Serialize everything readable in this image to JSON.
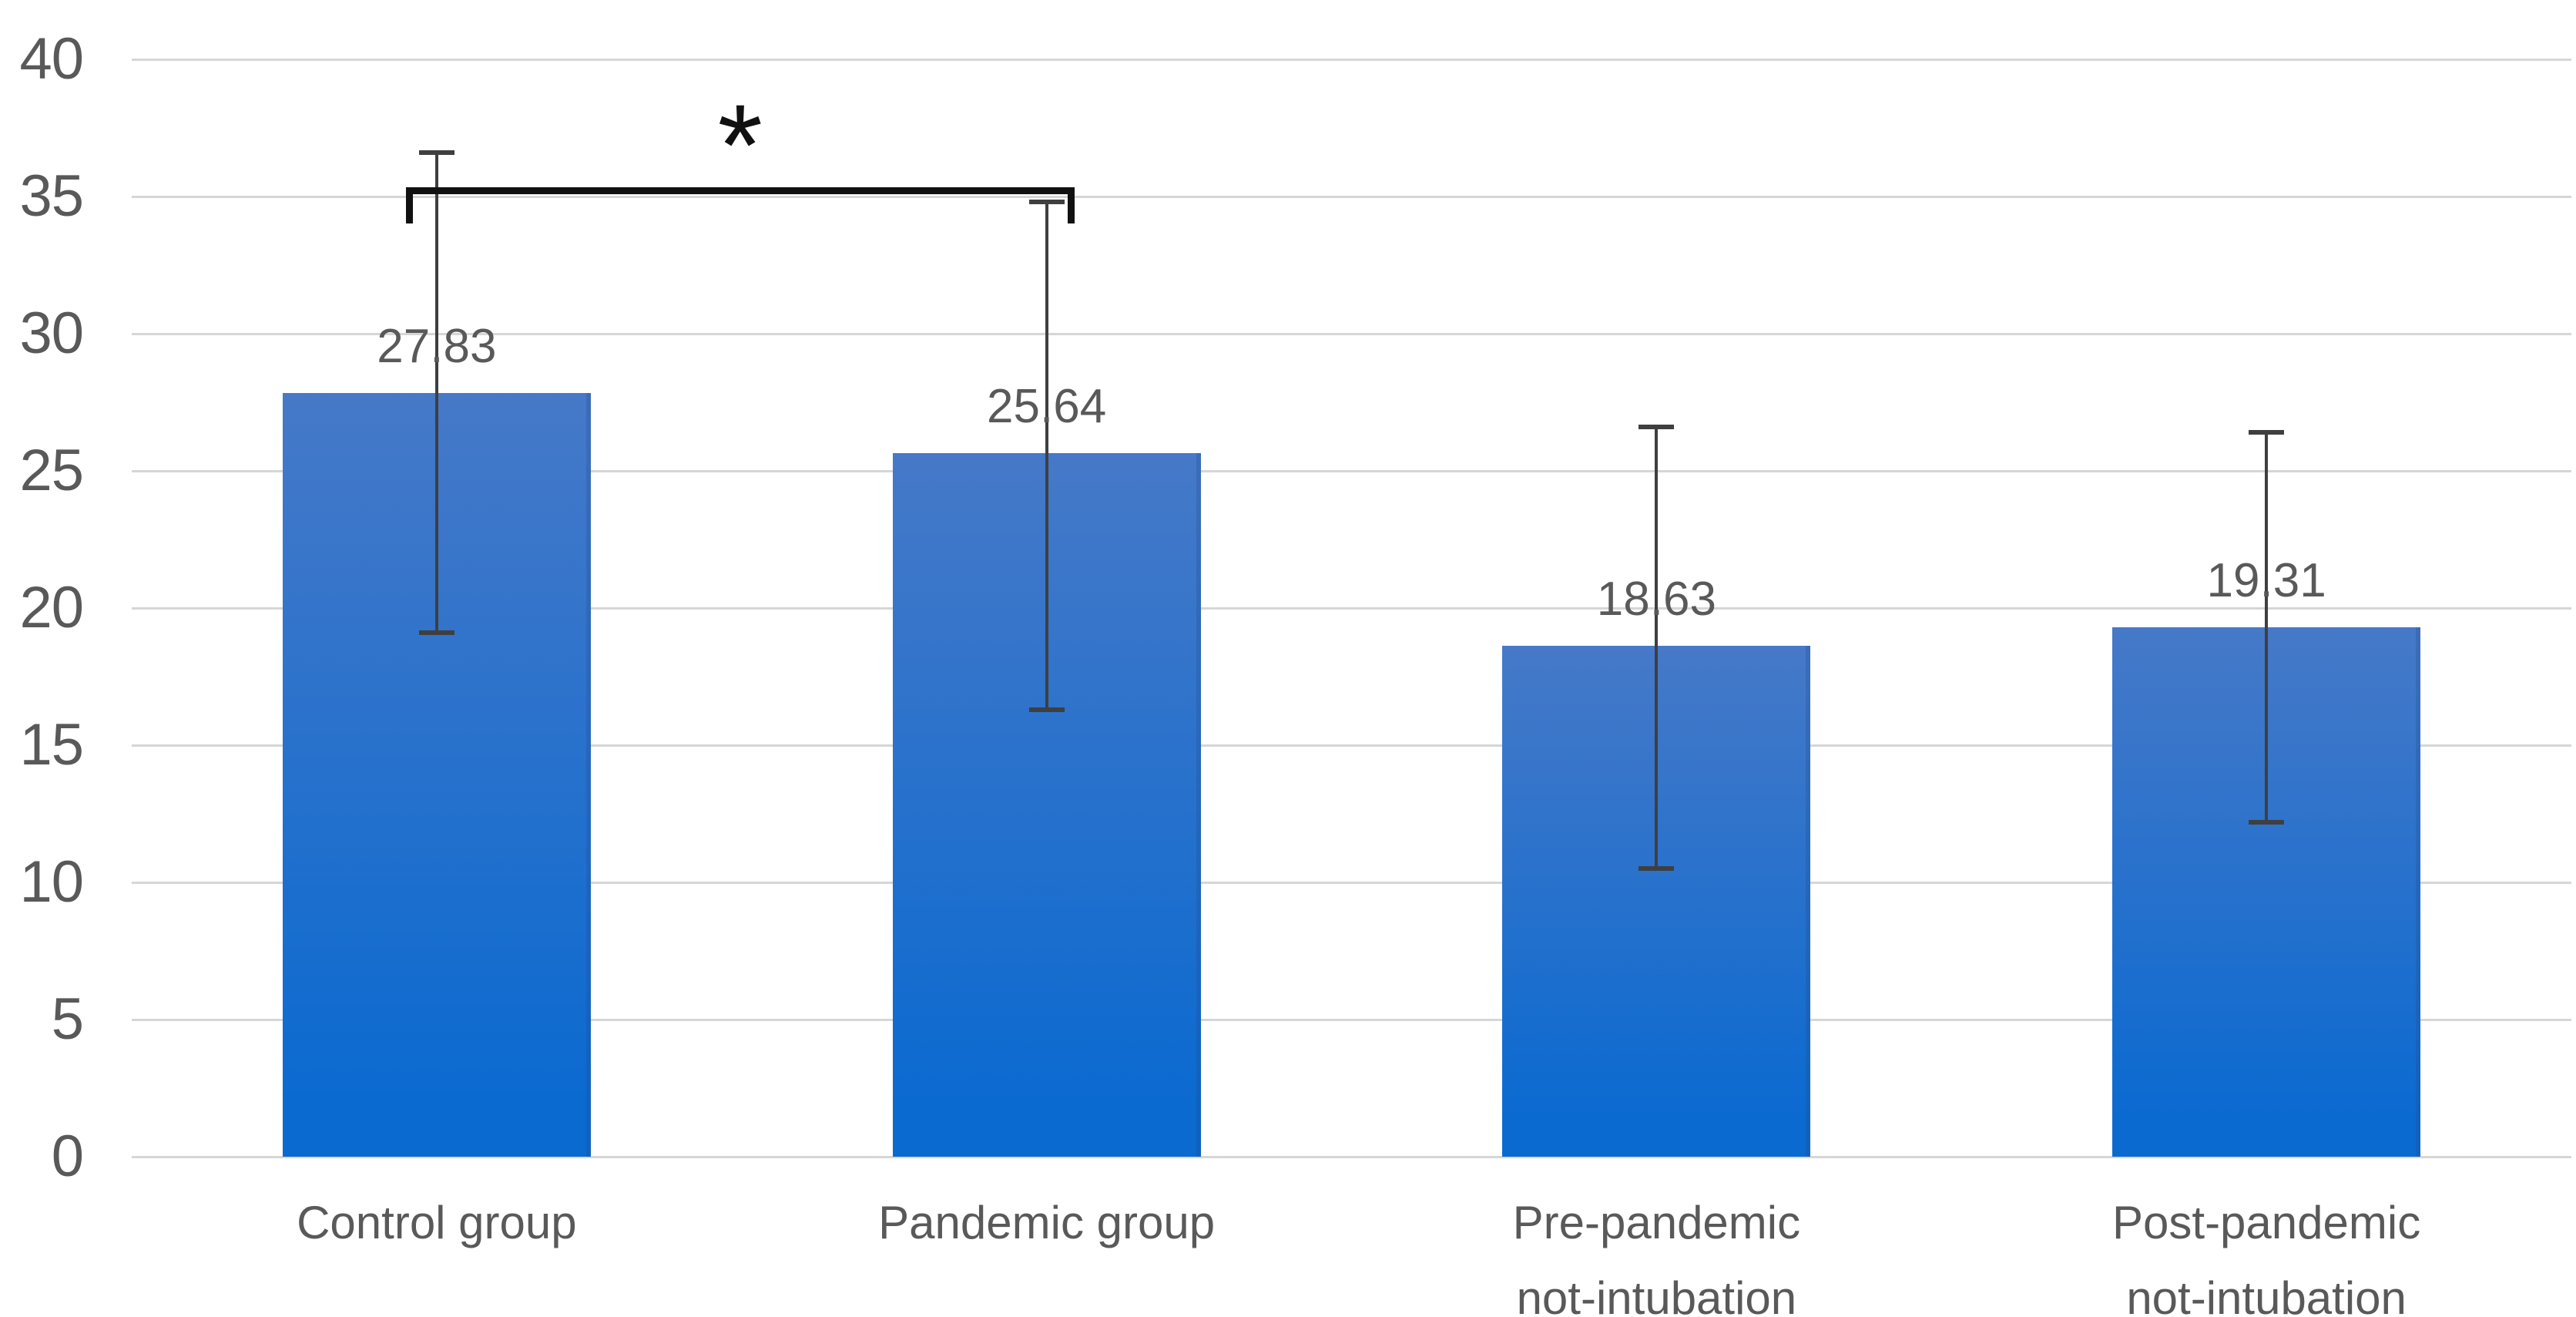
{
  "chart_data": {
    "type": "bar",
    "title": "",
    "categories": [
      "Control group",
      "Pandemic group",
      "Pre-pandemic not-intubation",
      "Post-pandemic not-intubation"
    ],
    "category_lines": [
      [
        "Control group"
      ],
      [
        "Pandemic group"
      ],
      [
        "Pre-pandemic",
        "not-intubation"
      ],
      [
        "Post-pandemic",
        "not-intubation"
      ]
    ],
    "values": [
      27.83,
      25.64,
      18.63,
      19.31
    ],
    "value_labels": [
      "27.83",
      "25.64",
      "18.63",
      "19.31"
    ],
    "error_bars": [
      {
        "top": 36.6,
        "bottom": 19.1
      },
      {
        "top": 34.8,
        "bottom": 16.3
      },
      {
        "top": 26.6,
        "bottom": 10.5
      },
      {
        "top": 26.4,
        "bottom": 12.2
      }
    ],
    "y_axis": {
      "min": 0,
      "max": 40,
      "step": 5,
      "tick_labels": [
        "40",
        "35",
        "30",
        "25",
        "20",
        "15",
        "10",
        "5",
        "0"
      ]
    },
    "grid": true,
    "legend_position": "none",
    "significance_bracket": {
      "from": "Control group",
      "to": "Pandemic group",
      "label": "*",
      "bar_y": 35.2,
      "leg_drop": 1.3
    },
    "colors": {
      "bar_gradient_top": "#4679C8",
      "bar_gradient_bottom": "#0B6AD0",
      "gridline": "#D6D6D6",
      "axis_text": "#595959",
      "error_bar": "#3F3F3F",
      "bracket": "#111111",
      "background": "#FFFFFF"
    }
  }
}
